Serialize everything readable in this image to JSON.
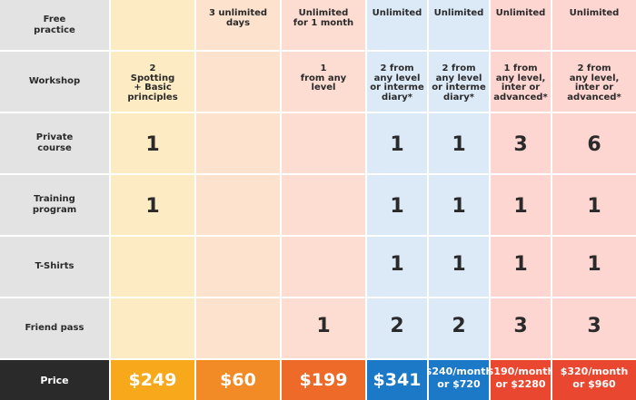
{
  "rows": [
    {
      "label": "Free\npractice",
      "values": [
        "",
        "3 unlimited\ndays",
        "Unlimited\nfor 1 month",
        "Unlimited",
        "Unlimited",
        "Unlimited",
        "Unlimited"
      ]
    },
    {
      "label": "Workshop",
      "values": [
        "2\nSpotting\n+ Basic\nprinciples",
        "",
        "1\nfrom any\nlevel",
        "2 from\nany level\nor interme\ndiary*",
        "2 from\nany level\nor interme\ndiary*",
        "1 from\nany level,\ninter or\nadvanced*",
        "2 from\nany level,\ninter or\nadvanced*"
      ]
    },
    {
      "label": "Private\ncourse",
      "values": [
        "1",
        "",
        "",
        "1",
        "1",
        "3",
        "6"
      ]
    },
    {
      "label": "Training\nprogram",
      "values": [
        "1",
        "",
        "",
        "1",
        "1",
        "1",
        "1"
      ]
    },
    {
      "label": "T-Shirts",
      "values": [
        "",
        "",
        "",
        "1",
        "1",
        "1",
        "1"
      ]
    },
    {
      "label": "Friend pass",
      "values": [
        "",
        "",
        "1",
        "2",
        "2",
        "3",
        "3"
      ]
    }
  ],
  "price": {
    "label": "Price",
    "values": [
      "$249",
      "$60",
      "$199",
      "$341",
      "$240/month\nor $720",
      "$190/month\nor $2280",
      "$320/month\nor $960"
    ]
  },
  "colors": {
    "col1": "#fdebc3",
    "col2": "#fde2cd",
    "col3": "#fddcd2",
    "col4": "#dceaf8",
    "col5": "#fdd5d1",
    "price1": "#f7a81b",
    "price2": "#f28a26",
    "price3": "#ee6a28",
    "price4": "#1b79c8",
    "price5": "#e9472f",
    "labelBg": "#e3e3e3",
    "priceLabelBg": "#2a2a2a"
  }
}
